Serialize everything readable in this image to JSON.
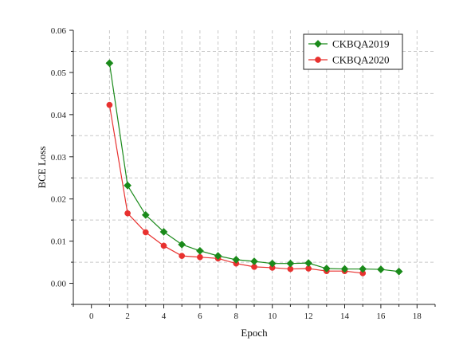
{
  "chart_data": {
    "type": "line",
    "xlabel": "Epoch",
    "ylabel": "BCE Loss",
    "xlim": [
      -1,
      19
    ],
    "ylim": [
      -0.005,
      0.06
    ],
    "x_ticks": [
      0,
      2,
      4,
      6,
      8,
      10,
      12,
      14,
      16,
      18
    ],
    "y_ticks": [
      0.0,
      0.01,
      0.02,
      0.03,
      0.04,
      0.05,
      0.06
    ],
    "y_tick_labels": [
      "0.00",
      "0.01",
      "0.02",
      "0.03",
      "0.04",
      "0.05",
      "0.06"
    ],
    "grid": true,
    "grid_style": "dashed",
    "legend_position": "top-right",
    "series": [
      {
        "name": "CKBQA2019",
        "color": "#1a8a1a",
        "marker": "diamond",
        "x": [
          1,
          2,
          3,
          4,
          5,
          6,
          7,
          8,
          9,
          10,
          11,
          12,
          13,
          14,
          15,
          16,
          17
        ],
        "y": [
          0.0522,
          0.0232,
          0.0162,
          0.0122,
          0.0092,
          0.0077,
          0.0065,
          0.0056,
          0.0052,
          0.0047,
          0.0047,
          0.0048,
          0.0035,
          0.0034,
          0.0034,
          0.0033,
          0.0028
        ]
      },
      {
        "name": "CKBQA2020",
        "color": "#e8312f",
        "marker": "circle",
        "x": [
          1,
          2,
          3,
          4,
          5,
          6,
          7,
          8,
          9,
          10,
          11,
          12,
          13,
          14,
          15
        ],
        "y": [
          0.0423,
          0.0166,
          0.0121,
          0.0089,
          0.0065,
          0.0062,
          0.0059,
          0.0047,
          0.0039,
          0.0037,
          0.0034,
          0.0035,
          0.0029,
          0.0029,
          0.0024
        ]
      }
    ]
  }
}
